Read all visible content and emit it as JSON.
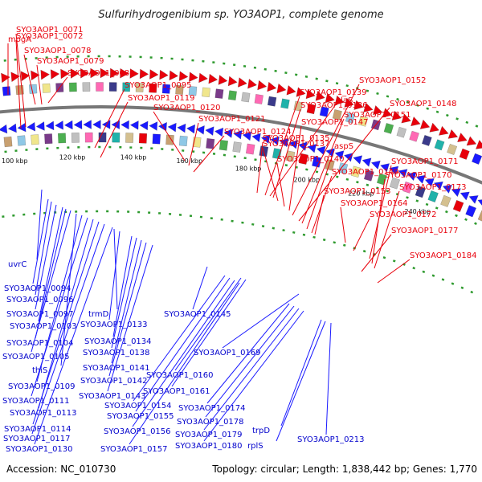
{
  "title": "Sulfurihydrogenibium sp. YO3AOP1, complete genome",
  "footer": {
    "accession": "Accession: NC_010730",
    "summary": "Topology: circular; Length: 1,838,442 bp; Genes: 1,770"
  },
  "colors": {
    "forward": "#e8000b",
    "reverse": "#1a1aff",
    "backbone": "#777777",
    "tick_dots": "#2e9a2e",
    "background": "#ffffff"
  },
  "scale_ticks": [
    "100 kbp",
    "120 kbp",
    "140 kbp",
    "160 kbp",
    "180 kbp",
    "200 kbp",
    "220 kbp",
    "240 kbp"
  ],
  "forward_labels": [
    "SYO3AOP1_0072",
    "SYO3AOP1_0071",
    "mogA",
    "SYO3AOP1_0078",
    "SYO3AOP1_0079",
    "SYO3AOP1_0080",
    "SYO3AOP1_0095",
    "SYO3AOP1_0119",
    "SYO3AOP1_0120",
    "SYO3AOP1_0121",
    "SYO3AOP1_0124",
    "SYO3AOP1_0135",
    "SYO3AOP1_0139",
    "alaS",
    "SYO3AOP1_0136",
    "SYO3AOP1_0137",
    "SYO3AOP1_0140",
    "SYO3AOP1_0147",
    "SYO3AOP1_0152",
    "SYO3AOP1_0148",
    "SYO3AOP1_0151",
    "aspS",
    "SYO3AOP1_0149",
    "SYO3AOP1_0153",
    "SYO3AOP1_0171",
    "SYO3AOP1_0170",
    "SYO3AOP1_0173",
    "SYO3AOP1_0164",
    "SYO3AOP1_0172",
    "SYO3AOP1_0177",
    "SYO3AOP1_0184"
  ],
  "reverse_labels": [
    "uvrC",
    "SYO3AOP1_0094",
    "SYO3AOP1_0096",
    "SYO3AOP1_0097",
    "SYO3AOP1_0103",
    "SYO3AOP1_0104",
    "SYO3AOP1_0105",
    "thiS",
    "SYO3AOP1_0109",
    "SYO3AOP1_0111",
    "SYO3AOP1_0113",
    "SYO3AOP1_0114",
    "SYO3AOP1_0117",
    "SYO3AOP1_0130",
    "trmD",
    "SYO3AOP1_0133",
    "SYO3AOP1_0145",
    "SYO3AOP1_0134",
    "SYO3AOP1_0138",
    "SYO3AOP1_0141",
    "SYO3AOP1_0142",
    "SYO3AOP1_0143",
    "SYO3AOP1_0160",
    "SYO3AOP1_0161",
    "SYO3AOP1_0154",
    "SYO3AOP1_0155",
    "SYO3AOP1_0156",
    "SYO3AOP1_0157",
    "SYO3AOP1_0169",
    "SYO3AOP1_0174",
    "SYO3AOP1_0178",
    "SYO3AOP1_0179",
    "SYO3AOP1_0180",
    "trpD",
    "rplS",
    "SYO3AOP1_0213"
  ]
}
